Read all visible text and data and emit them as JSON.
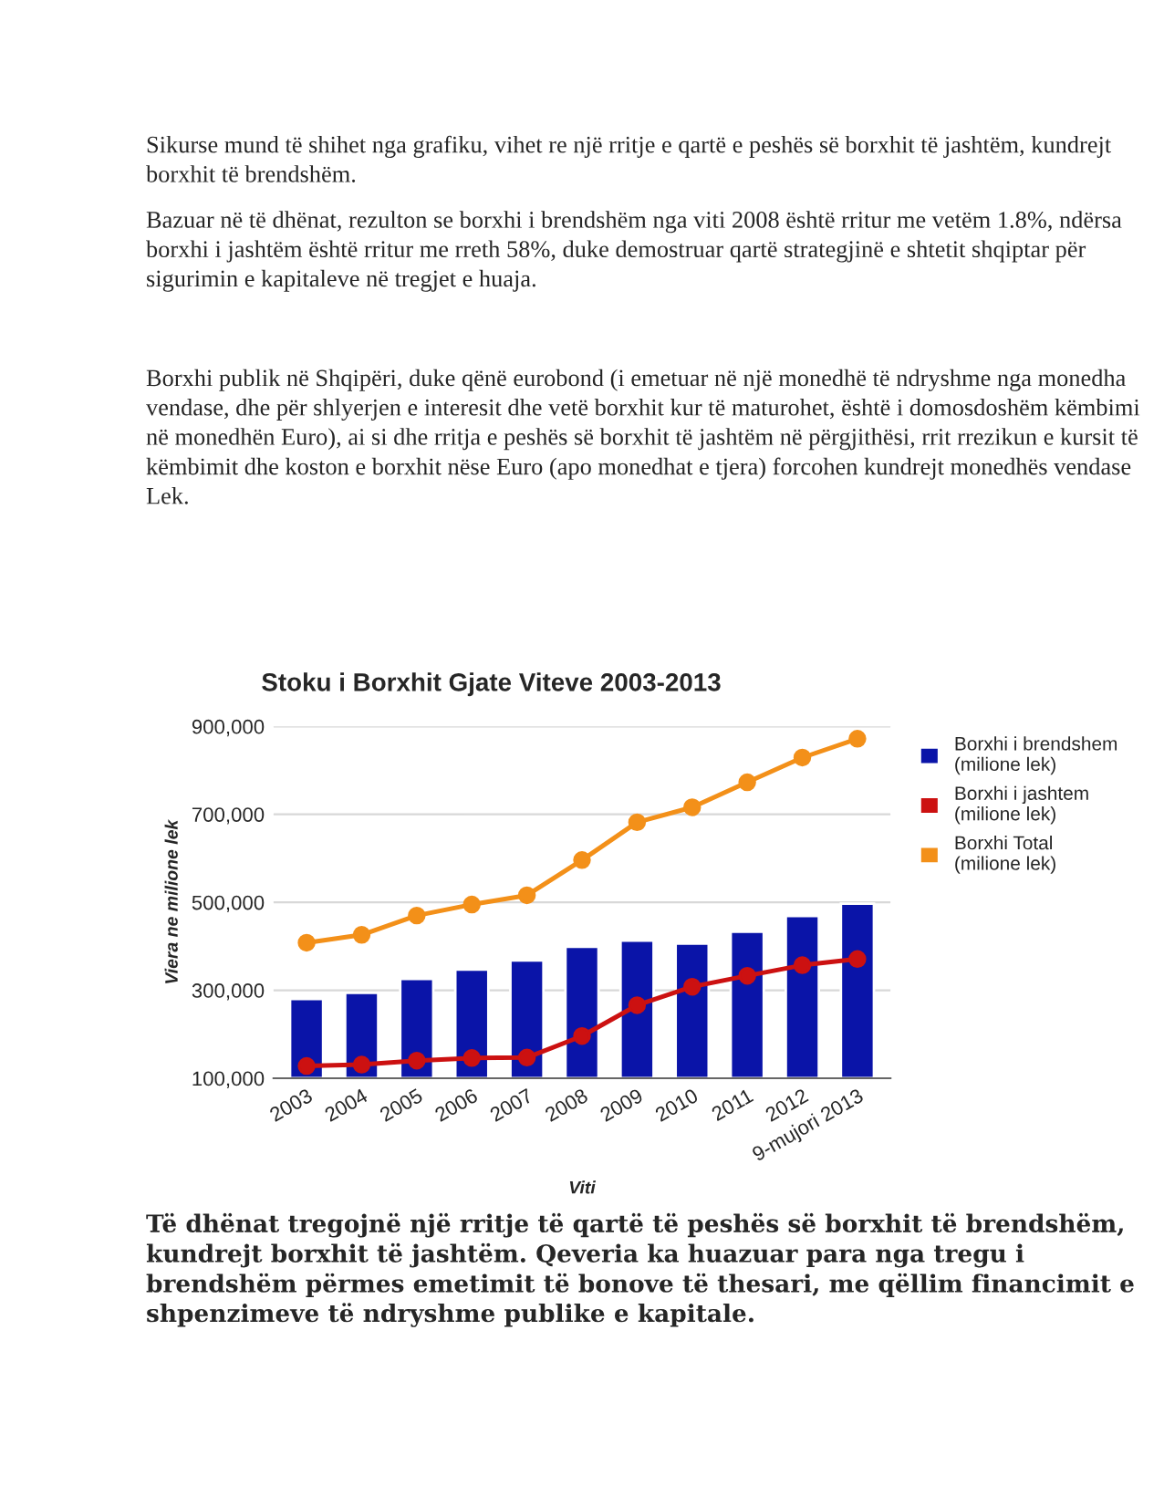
{
  "chart_data": {
    "type": "bar",
    "title": "Stoku i Borxhit Gjate Viteve 2003-2013",
    "xlabel": "Viti",
    "ylabel": "Viera ne milione lek",
    "categories": [
      "2003",
      "2004",
      "2005",
      "2006",
      "2007",
      "2008",
      "2009",
      "2010",
      "2011",
      "2012",
      "9-mujori 2013"
    ],
    "series": [
      {
        "name": "Borxhi i brendshem (milione lek)",
        "color": "#0a14a8",
        "values": [
          280000,
          294000,
          326000,
          347000,
          368000,
          399000,
          413000,
          406000,
          433000,
          469000,
          497000
        ]
      },
      {
        "name": "Borxhi i jashtem (milione lek)",
        "type": "line",
        "color": "#cc1111",
        "values": [
          128000,
          131000,
          140000,
          146000,
          147000,
          196000,
          266000,
          308000,
          333000,
          357000,
          371000
        ]
      },
      {
        "name": "Borxhi Total (milione lek)",
        "type": "line",
        "color": "#f39019",
        "values": [
          408000,
          426000,
          470000,
          495000,
          516000,
          596000,
          682000,
          716000,
          773000,
          829000,
          872000
        ]
      }
    ],
    "ylim": [
      100000,
      900000
    ],
    "yticks": [
      {
        "value": 100000,
        "label": "100,000"
      },
      {
        "value": 300000,
        "label": "300,000"
      },
      {
        "value": 500000,
        "label": "500,000"
      },
      {
        "value": 700000,
        "label": "700,000"
      },
      {
        "value": 900000,
        "label": "900,000"
      }
    ],
    "grid": "y",
    "legend": "right",
    "marker": "circle",
    "line_style": "solid",
    "annotations": [
      "Sikurse mund të shihet nga grafiku, vihet re një rritje e qartë e peshës së borxhit të jashtëm, kundrejt borxhit të brendshëm.",
      "Bazuar në të dhënat, rezulton se borxhi i brendshëm nga viti 2008 është rritur me vetëm 1.8%, ndërsa borxhi i jashtëm është rritur me rreth 58%, duke demostruar qartë strategjinë e shtetit shqiptar për sigurimin e kapitaleve në tregjet e huaja.",
      "Borxhi publik në Shqipëri, duke qënë eurobond (i emetuar në një monedhë të ndryshme nga monedha vendase, dhe për shlyerjen e interesit dhe vetë borxhit kur të maturohet, është i domosdoshëm këmbimi në monedhën Euro), ai si dhe rritja e peshës së borxhit të jashtëm në përgjithësi, rrit rrezikun e kursit të këmbimit dhe koston e borxhit nëse Euro (apo monedhat e tjera) forcohen kundrejt monedhës vendase Lek.",
      "Të dhënat tregojnë një rritje të qartë të peshës së borxhit të brendshëm, kundrejt borxhit të jashtëm. Qeveria ka huazuar para nga tregu i brendshëm përmes emetimit të bonove të thesari, me qëllim financimit e shpenzimeve të ndryshme publike e kapitale."
    ]
  }
}
